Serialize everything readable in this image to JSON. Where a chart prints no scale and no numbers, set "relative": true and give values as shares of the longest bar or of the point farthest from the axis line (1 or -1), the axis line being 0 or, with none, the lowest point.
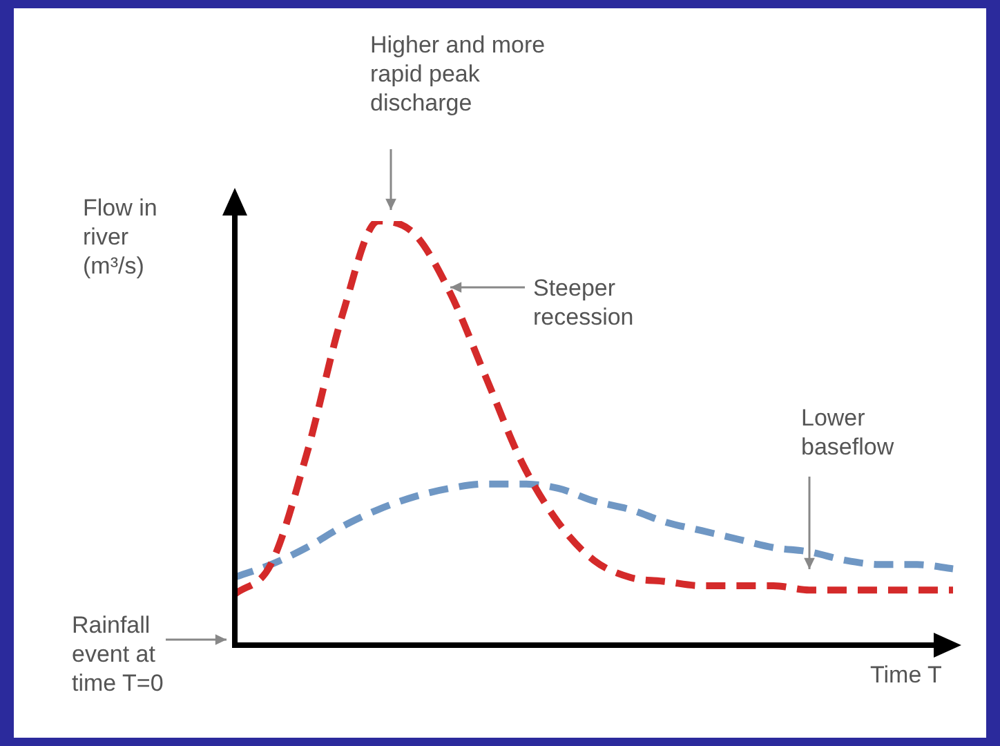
{
  "chart_data": {
    "type": "line",
    "relative": true,
    "xlabel": "Time T",
    "ylabel": "Flow in river (m³/s)",
    "categories": [
      null,
      null,
      null,
      null,
      null,
      null,
      null,
      null,
      null,
      null,
      null,
      null,
      null,
      null,
      null,
      null,
      null,
      null,
      null,
      null,
      null
    ],
    "series": [
      {
        "color": "#d42a2a",
        "values": [
          0.12,
          0.19,
          0.45,
          0.78,
          1,
          0.97,
          0.83,
          0.63,
          0.43,
          0.29,
          0.2,
          0.16,
          0.15,
          0.14,
          0.14,
          0.14,
          0.13,
          0.13,
          0.13,
          0.13,
          0.13
        ]
      },
      {
        "color": "#6f97c4",
        "values": [
          0.16,
          0.19,
          0.23,
          0.28,
          0.32,
          0.35,
          0.37,
          0.38,
          0.38,
          0.37,
          0.34,
          0.32,
          0.29,
          0.27,
          0.25,
          0.23,
          0.22,
          0.2,
          0.19,
          0.19,
          0.18
        ]
      }
    ],
    "annotations": [
      "Higher and more rapid peak discharge",
      "Steeper recession",
      "Lower baseflow",
      "Rainfall event at time T=0"
    ],
    "legend": false,
    "marker": "none",
    "line_style": "dashed"
  }
}
